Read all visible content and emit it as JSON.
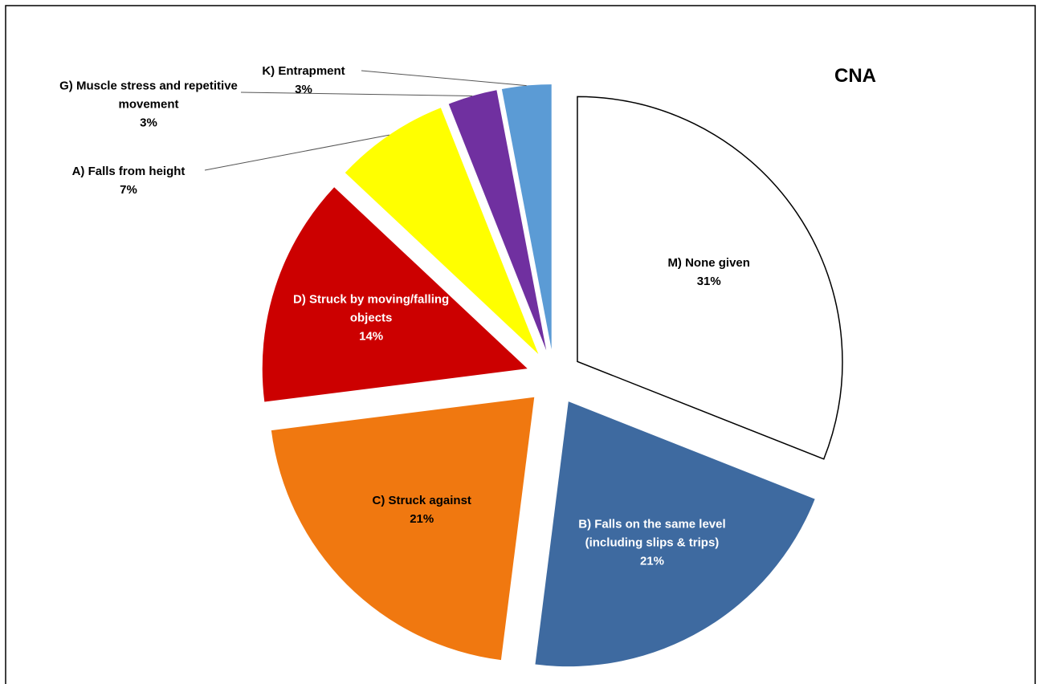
{
  "chart_data": {
    "type": "pie",
    "title": "CNA",
    "categories": [
      "M) None given",
      "B) Falls on the same level (including slips & trips)",
      "C) Struck against",
      "D) Struck by moving/falling objects",
      "A) Falls from height",
      "G) Muscle stress and repetitive movement",
      "K) Entrapment"
    ],
    "values": [
      31,
      21,
      21,
      14,
      7,
      3,
      3
    ],
    "value_labels": [
      "31%",
      "21%",
      "21%",
      "14%",
      "7%",
      "3%",
      "3%"
    ],
    "colors": [
      "#ffffff",
      "#3e6aa0",
      "#f07810",
      "#cc0000",
      "#ffff00",
      "#7030a0",
      "#5b9bd5"
    ]
  }
}
